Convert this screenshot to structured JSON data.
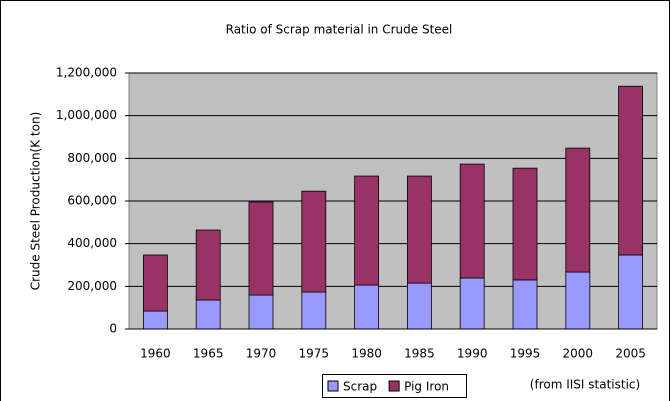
{
  "chart_data": {
    "type": "stacked_bar",
    "title": "Ratio of Scrap material in Crude Steel",
    "y_label": "Crude Steel Production(K ton)",
    "note": "(from IISI statistic)",
    "categories": [
      "1960",
      "1965",
      "1970",
      "1975",
      "1980",
      "1985",
      "1990",
      "1995",
      "2000",
      "2005"
    ],
    "series": [
      {
        "name": "Scrap",
        "color": "#9999ff",
        "values": [
          84000,
          136000,
          159000,
          173000,
          206000,
          215000,
          239000,
          230000,
          267000,
          347000
        ]
      },
      {
        "name": "Pig Iron",
        "color": "#993366",
        "values": [
          263000,
          328000,
          436000,
          473000,
          511000,
          502000,
          534000,
          524000,
          581000,
          791000
        ]
      }
    ],
    "ylim": [
      0,
      1200000
    ],
    "yticks": [
      0,
      {
        "value": 200000,
        "label": "200,000"
      },
      {
        "value": 400000,
        "label": "400,000"
      },
      {
        "value": 600000,
        "label": "600,000"
      },
      {
        "value": 800000,
        "label": "800,000"
      },
      {
        "value": 1000000,
        "label": "1,000,000"
      },
      {
        "value": 1200000,
        "label": "1,200,000"
      }
    ],
    "grid": true,
    "plot_background": "#c0c0c0",
    "legend": "bottom"
  }
}
